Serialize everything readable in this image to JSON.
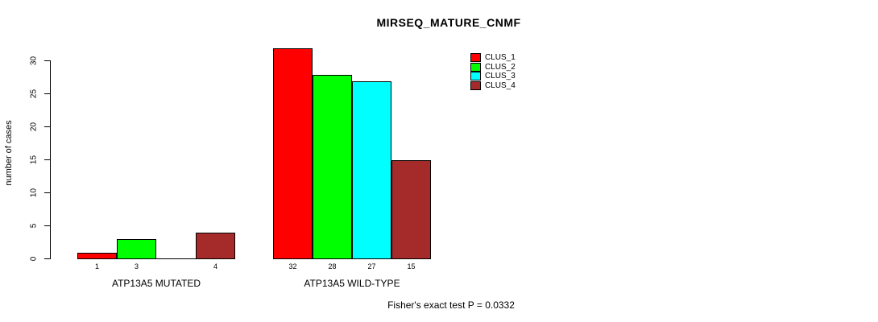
{
  "title": "MIRSEQ_MATURE_CNMF",
  "footer": {
    "annotation": "Fisher's exact test P = 0.0332"
  },
  "legend": {
    "items": [
      {
        "label": "CLUS_1",
        "color": "#ff0000"
      },
      {
        "label": "CLUS_2",
        "color": "#00ff00"
      },
      {
        "label": "CLUS_3",
        "color": "#00ffff"
      },
      {
        "label": "CLUS_4",
        "color": "#a52a2a"
      }
    ]
  },
  "chart_data": {
    "type": "bar",
    "title": "MIRSEQ_MATURE_CNMF",
    "xlabel": "",
    "ylabel": "number of cases",
    "ylim": [
      0,
      32.5
    ],
    "yticks": [
      0,
      5,
      10,
      15,
      20,
      25,
      30
    ],
    "grid": false,
    "legend_position": "top-right",
    "categories": [
      "ATP13A5 MUTATED",
      "ATP13A5 WILD-TYPE"
    ],
    "series": [
      {
        "name": "CLUS_1",
        "color": "#ff0000",
        "values": [
          1,
          32
        ]
      },
      {
        "name": "CLUS_2",
        "color": "#00ff00",
        "values": [
          3,
          28
        ]
      },
      {
        "name": "CLUS_3",
        "color": "#00ffff",
        "values": [
          0,
          27
        ]
      },
      {
        "name": "CLUS_4",
        "color": "#a52a2a",
        "values": [
          4,
          15
        ]
      }
    ],
    "bar_value_labels": [
      [
        "1",
        "3",
        "",
        "4"
      ],
      [
        "32",
        "28",
        "27",
        "15"
      ]
    ],
    "annotation": "Fisher's exact test P = 0.0332"
  }
}
